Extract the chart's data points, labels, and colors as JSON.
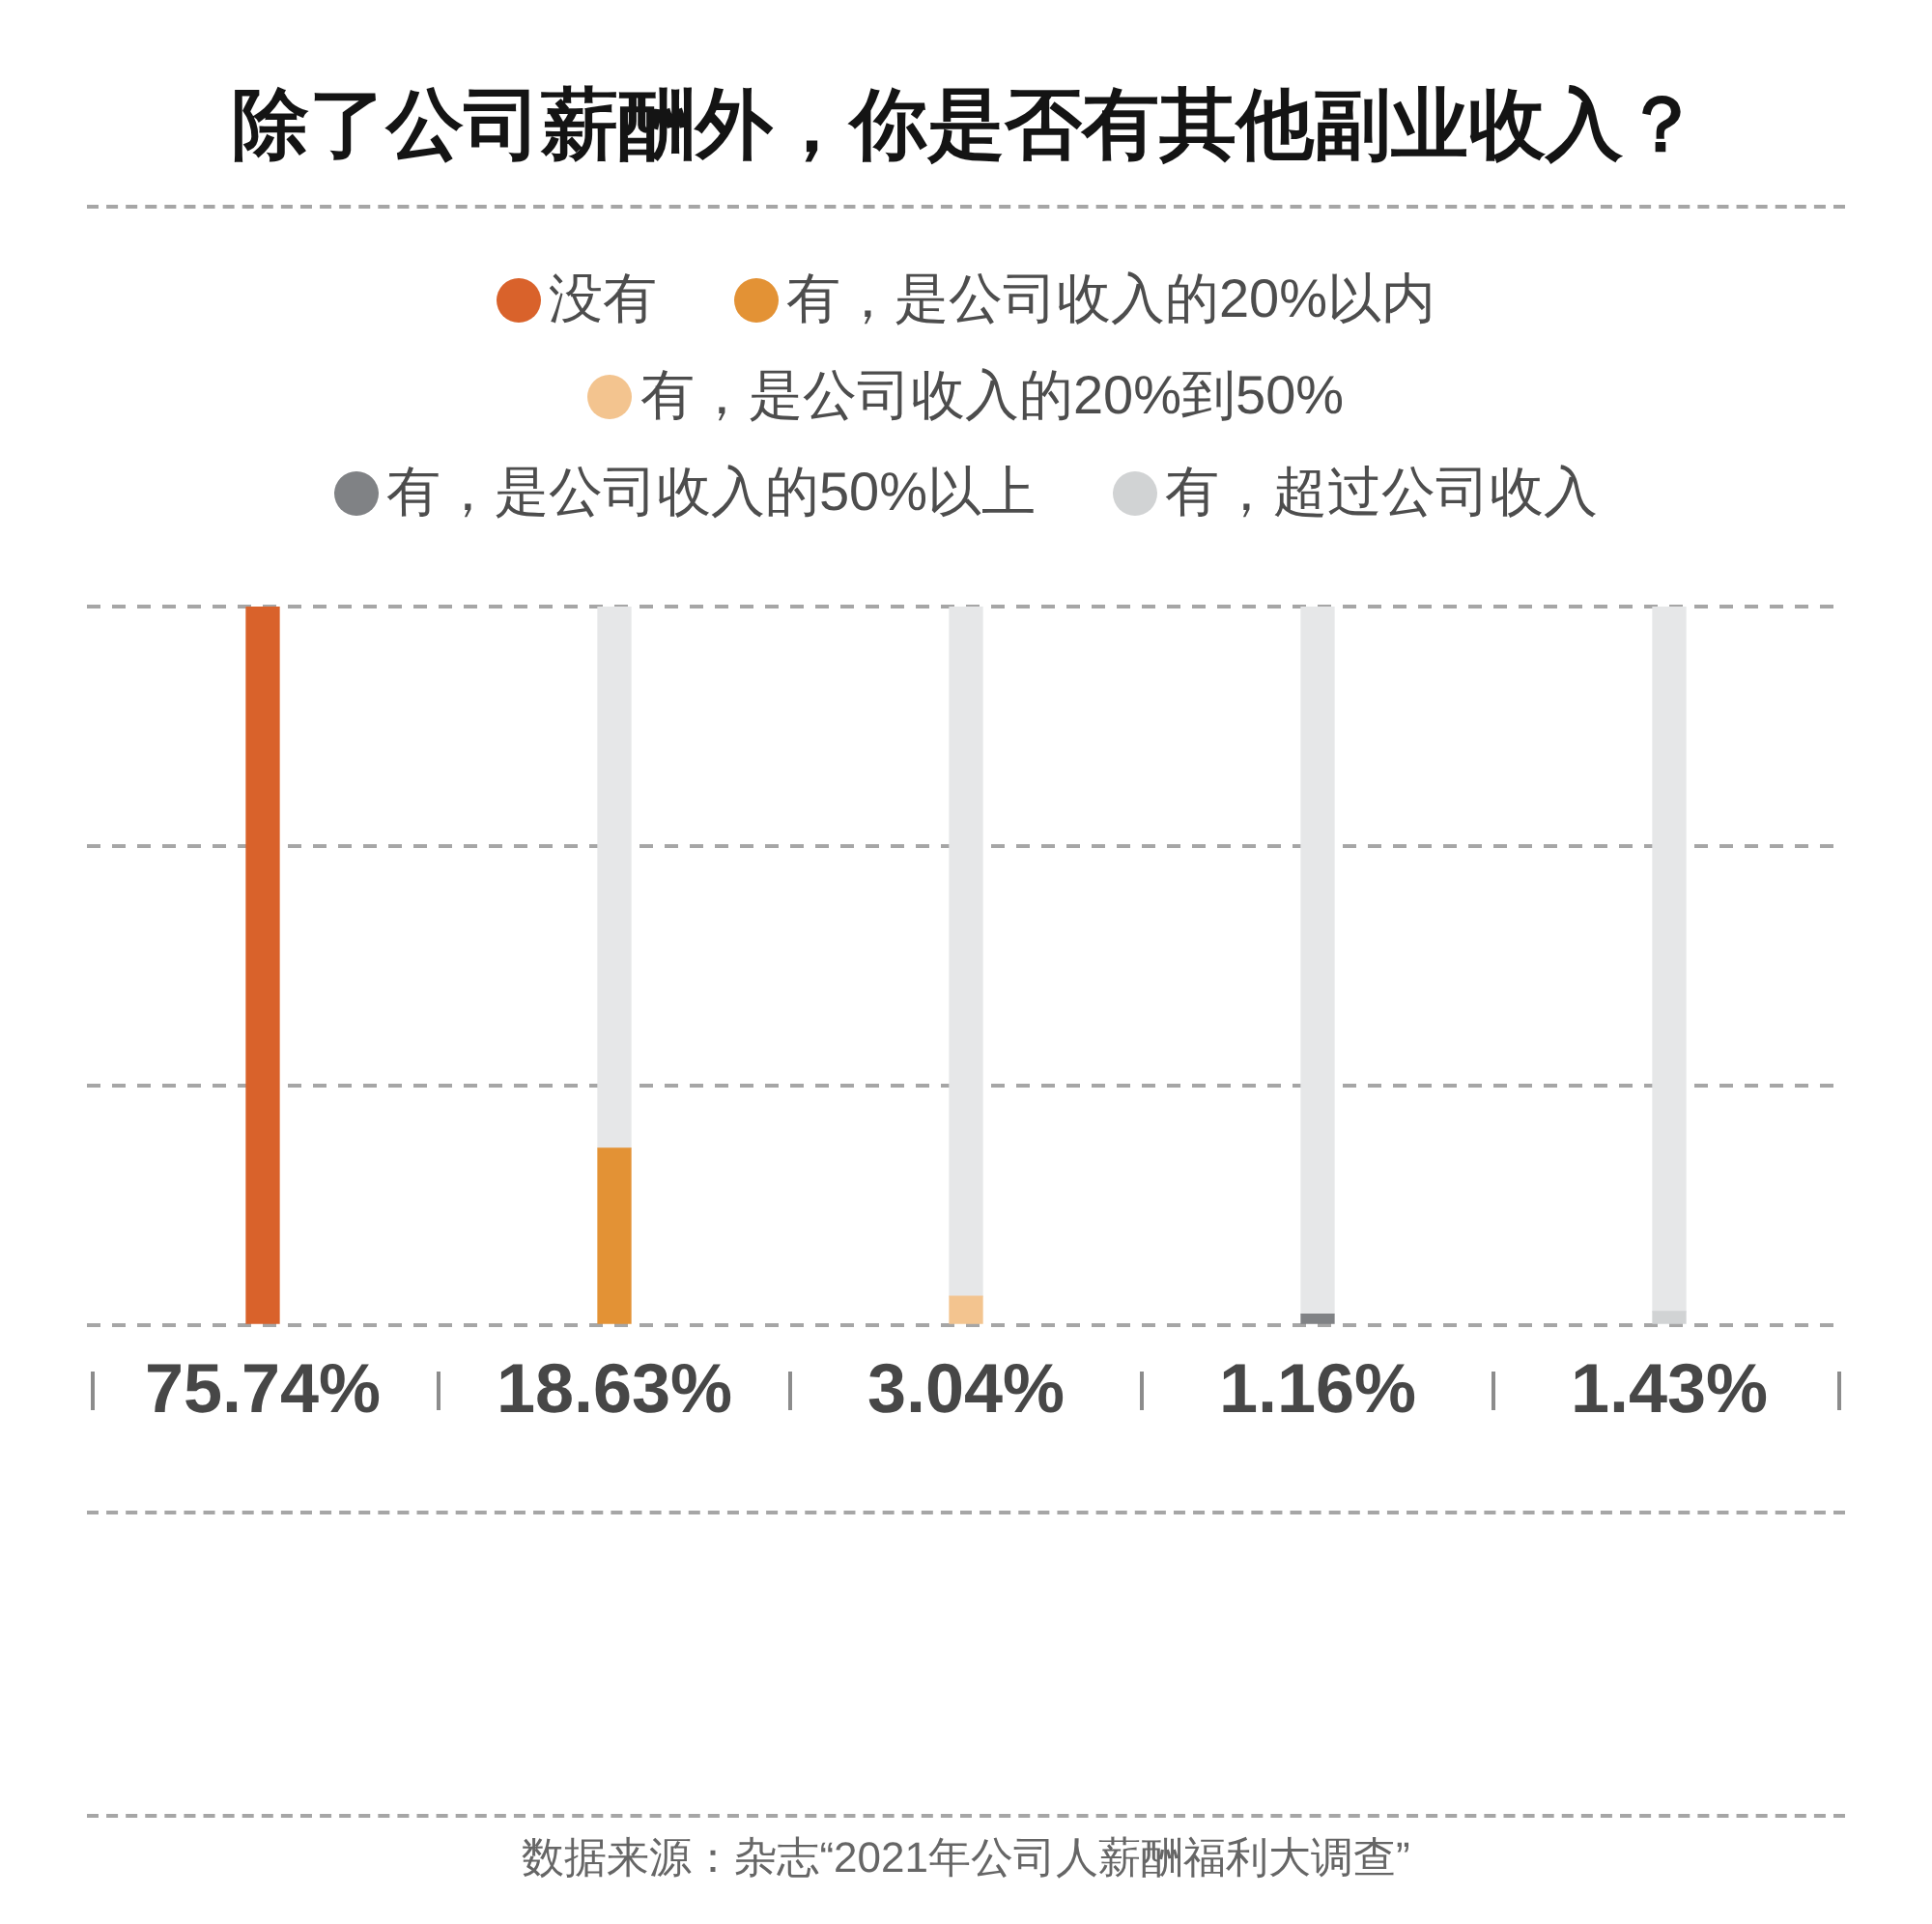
{
  "chart_data": {
    "type": "bar",
    "title": "除了公司薪酬外，你是否有其他副业收入？",
    "categories": [
      null,
      null,
      null,
      null,
      null
    ],
    "series": [
      {
        "name": "没有",
        "color": "#d9622b",
        "values": [
          75.74,
          null,
          null,
          null,
          null
        ],
        "value_labels": [
          "75.74%",
          null,
          null,
          null,
          null
        ]
      },
      {
        "name": "有，是公司收入的20%以内",
        "color": "#e39235",
        "values": [
          null,
          18.63,
          null,
          null,
          null
        ],
        "value_labels": [
          null,
          "18.63%",
          null,
          null,
          null
        ]
      },
      {
        "name": "有，是公司收入的20%到50%",
        "color": "#f3c48f",
        "values": [
          null,
          null,
          3.04,
          null,
          null
        ],
        "value_labels": [
          null,
          null,
          "3.04%",
          null,
          null
        ]
      },
      {
        "name": "有，是公司收入的50%以上",
        "color": "#808285",
        "values": [
          null,
          null,
          null,
          1.16,
          null
        ],
        "value_labels": [
          null,
          null,
          null,
          "1.16%",
          null
        ]
      },
      {
        "name": "有，超过公司收入",
        "color": "#d1d3d4",
        "values": [
          null,
          null,
          null,
          null,
          1.43
        ],
        "value_labels": [
          null,
          null,
          null,
          null,
          "1.43%"
        ]
      },
      {
        "color": "#e6e7e8",
        "values": [
          0,
          57.11,
          72.7,
          74.58,
          74.31
        ]
      }
    ],
    "stacked": true,
    "legend": "top",
    "grid": "y",
    "ylim": [
      0,
      75.74
    ],
    "yticks": [
      {
        "value": 0,
        "label": null
      },
      {
        "value": 25.25,
        "label": null
      },
      {
        "value": 50.49,
        "label": null
      },
      {
        "value": 75.74,
        "label": null
      }
    ],
    "annotations": [
      "数据来源：杂志“2021年公司人薪酬福利大调查”"
    ]
  }
}
